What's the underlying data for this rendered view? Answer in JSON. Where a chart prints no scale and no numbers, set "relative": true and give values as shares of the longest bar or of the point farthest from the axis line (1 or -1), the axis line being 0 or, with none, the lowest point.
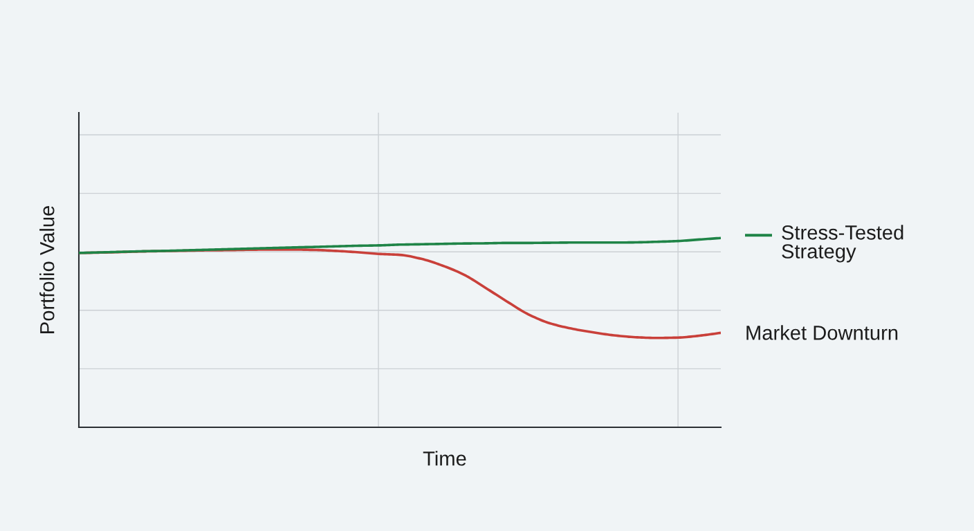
{
  "chart_data": {
    "type": "line",
    "xlabel": "Time",
    "ylabel": "Portfolio Value",
    "relative": true,
    "grid": true,
    "categories": [
      null,
      null,
      null,
      null,
      null,
      null,
      null,
      null,
      null,
      null,
      null,
      null,
      null,
      null,
      null,
      null,
      null,
      null,
      null,
      null,
      null,
      null,
      null,
      null,
      null,
      null,
      null,
      null,
      null,
      null,
      null
    ],
    "series": [
      {
        "name": "Stress-Tested Strategy",
        "color": "#1f8447",
        "values": [
          0.921,
          0.924,
          0.927,
          0.93,
          0.932,
          0.935,
          0.938,
          0.941,
          0.944,
          0.947,
          0.95,
          0.953,
          0.956,
          0.959,
          0.961,
          0.965,
          0.967,
          0.969,
          0.971,
          0.972,
          0.974,
          0.974,
          0.975,
          0.976,
          0.976,
          0.976,
          0.977,
          0.98,
          0.984,
          0.992,
          1.0
        ]
      },
      {
        "name": "Market Downturn",
        "color": "#c9403a",
        "values": [
          0.921,
          0.923,
          0.926,
          0.929,
          0.931,
          0.933,
          0.935,
          0.936,
          0.938,
          0.939,
          0.939,
          0.937,
          0.932,
          0.925,
          0.916,
          0.911,
          0.89,
          0.854,
          0.806,
          0.737,
          0.665,
          0.597,
          0.55,
          0.522,
          0.502,
          0.486,
          0.476,
          0.472,
          0.474,
          0.484,
          0.499
        ]
      }
    ]
  }
}
